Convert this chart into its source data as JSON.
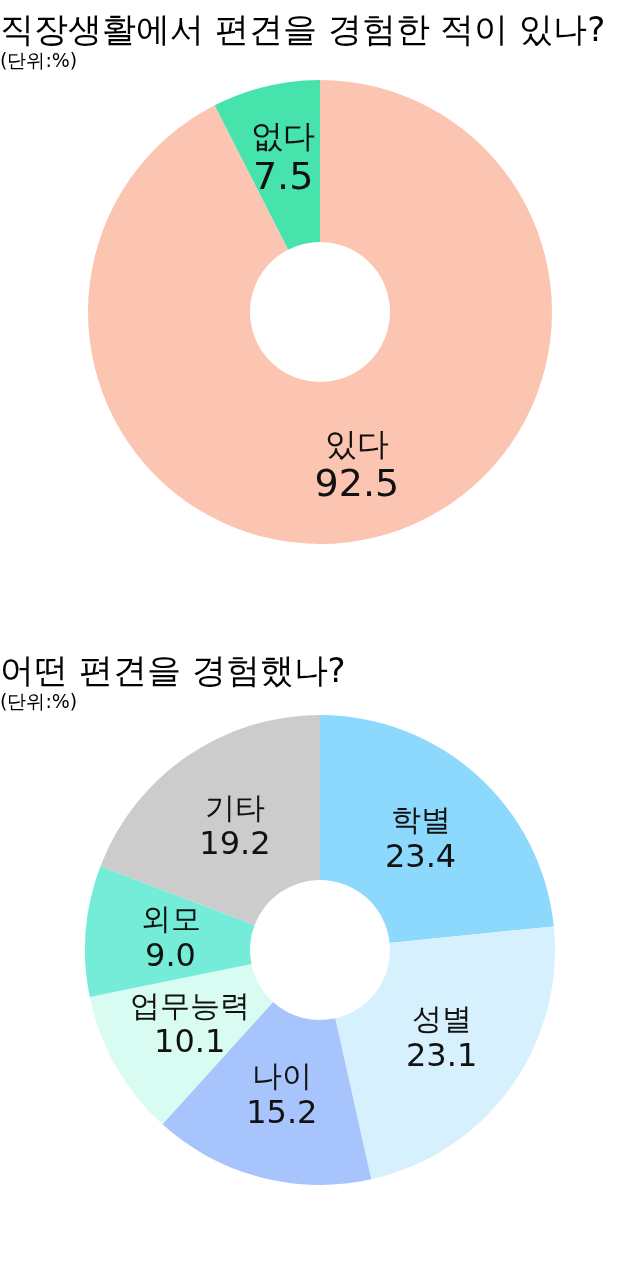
{
  "chart_data": [
    {
      "type": "donut",
      "title": "직장생활에서 편견을 경험한 적이 있나?",
      "subtitle": "(단위:%)",
      "categories": [
        "있다",
        "없다"
      ],
      "values": [
        92.5,
        7.5
      ],
      "colors": [
        "#fcc5b2",
        "#47e3ac"
      ],
      "value_labels": [
        "92.5",
        "7.5"
      ],
      "legend": false
    },
    {
      "type": "donut",
      "title": "어떤 편견을 경험했나?",
      "subtitle": "(단위:%)",
      "categories": [
        "학별",
        "성별",
        "나이",
        "업무능력",
        "외모",
        "기타"
      ],
      "values": [
        23.4,
        23.1,
        15.2,
        10.1,
        9.0,
        19.2
      ],
      "colors": [
        "#8cd9fd",
        "#d6f1fd",
        "#a7c5fc",
        "#d8fcf1",
        "#74ecd8",
        "#cccccc"
      ],
      "value_labels": [
        "23.4",
        "23.1",
        "15.2",
        "10.1",
        "9.0",
        "19.2"
      ],
      "legend": false
    }
  ]
}
